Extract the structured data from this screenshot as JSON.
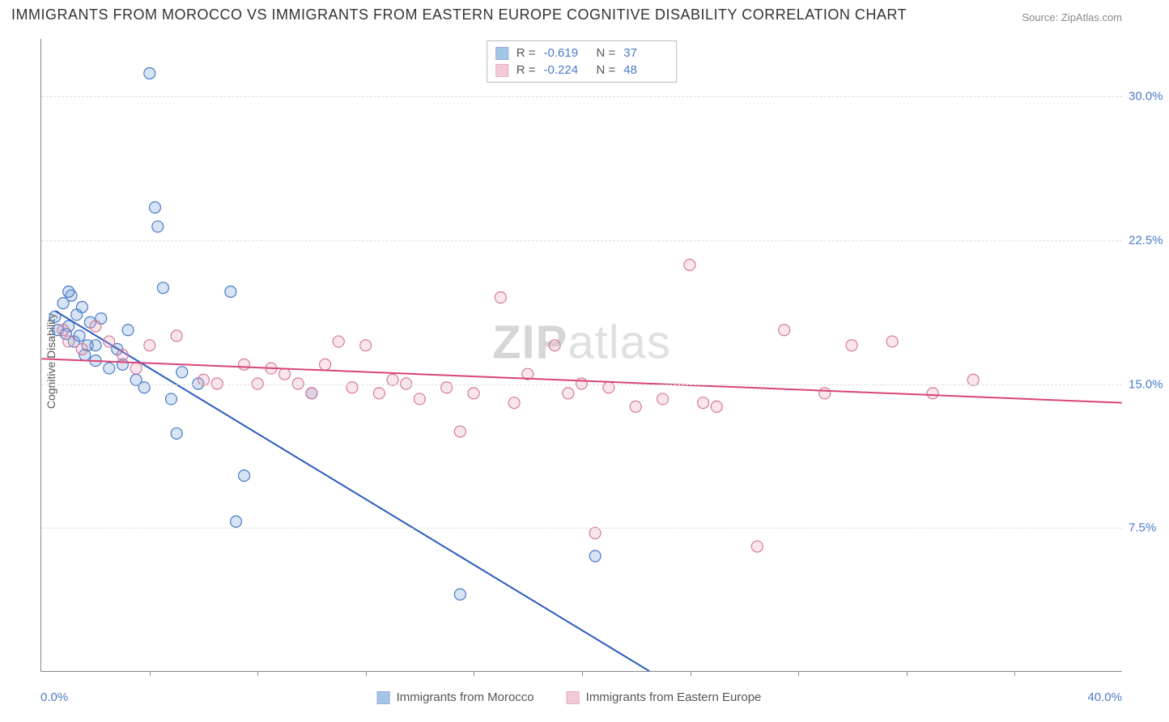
{
  "title": "IMMIGRANTS FROM MOROCCO VS IMMIGRANTS FROM EASTERN EUROPE COGNITIVE DISABILITY CORRELATION CHART",
  "source": "Source: ZipAtlas.com",
  "watermark": "ZIPatlas",
  "ylabel": "Cognitive Disability",
  "chart": {
    "type": "scatter",
    "background_color": "#ffffff",
    "grid_color": "#dddddd",
    "axis_color": "#888888",
    "xlim": [
      0,
      40
    ],
    "ylim": [
      0,
      33
    ],
    "xtick_positions": [
      4,
      8,
      12,
      16,
      20,
      24,
      28,
      32,
      36
    ],
    "ytick_positions": [
      7.5,
      15.0,
      22.5,
      30.0
    ],
    "ytick_labels": [
      "7.5%",
      "15.0%",
      "22.5%",
      "30.0%"
    ],
    "xaxis_min_label": "0.0%",
    "xaxis_max_label": "40.0%",
    "title_fontsize": 18,
    "label_fontsize": 14,
    "tick_fontsize": 15,
    "tick_label_color": "#4a7ac7",
    "marker_radius": 7,
    "marker_stroke_width": 1.2,
    "marker_fill_opacity": 0.28,
    "line_width": 2,
    "series": [
      {
        "name": "Immigrants from Morocco",
        "color": "#6b9fd8",
        "stroke": "#4a7ac7",
        "line_color": "#2b5cbf",
        "r_label": "R =",
        "r_value": "-0.619",
        "n_label": "N =",
        "n_value": "37",
        "trendline": {
          "x1": 0.5,
          "y1": 18.8,
          "x2": 22.5,
          "y2": 0
        },
        "points": [
          [
            0.5,
            18.5
          ],
          [
            0.6,
            17.8
          ],
          [
            0.8,
            19.2
          ],
          [
            1.0,
            18.0
          ],
          [
            1.1,
            19.6
          ],
          [
            1.2,
            17.2
          ],
          [
            1.3,
            18.6
          ],
          [
            1.4,
            17.5
          ],
          [
            1.5,
            19.0
          ],
          [
            1.6,
            16.5
          ],
          [
            1.8,
            18.2
          ],
          [
            2.0,
            17.0
          ],
          [
            2.0,
            16.2
          ],
          [
            2.2,
            18.4
          ],
          [
            2.5,
            15.8
          ],
          [
            3.0,
            16.0
          ],
          [
            3.2,
            17.8
          ],
          [
            3.5,
            15.2
          ],
          [
            4.0,
            31.2
          ],
          [
            4.2,
            24.2
          ],
          [
            4.3,
            23.2
          ],
          [
            4.5,
            20.0
          ],
          [
            4.8,
            14.2
          ],
          [
            5.0,
            12.4
          ],
          [
            5.2,
            15.6
          ],
          [
            5.8,
            15.0
          ],
          [
            7.0,
            19.8
          ],
          [
            7.2,
            7.8
          ],
          [
            7.5,
            10.2
          ],
          [
            10.0,
            14.5
          ],
          [
            15.5,
            4.0
          ],
          [
            20.5,
            6.0
          ],
          [
            1.0,
            19.8
          ],
          [
            1.7,
            17.0
          ],
          [
            2.8,
            16.8
          ],
          [
            3.8,
            14.8
          ],
          [
            0.9,
            17.6
          ]
        ]
      },
      {
        "name": "Immigrants from Eastern Europe",
        "color": "#eaa7bb",
        "stroke": "#d67a98",
        "line_color": "#d8447a",
        "r_label": "R =",
        "r_value": "-0.224",
        "n_label": "N =",
        "n_value": "48",
        "trendline": {
          "x1": 0,
          "y1": 16.3,
          "x2": 40,
          "y2": 14.0
        },
        "points": [
          [
            0.8,
            17.8
          ],
          [
            1.0,
            17.2
          ],
          [
            1.5,
            16.8
          ],
          [
            2.0,
            18.0
          ],
          [
            2.5,
            17.2
          ],
          [
            3.0,
            16.5
          ],
          [
            3.5,
            15.8
          ],
          [
            4.0,
            17.0
          ],
          [
            5.0,
            17.5
          ],
          [
            6.0,
            15.2
          ],
          [
            6.5,
            15.0
          ],
          [
            7.5,
            16.0
          ],
          [
            8.0,
            15.0
          ],
          [
            8.5,
            15.8
          ],
          [
            9.0,
            15.5
          ],
          [
            10.0,
            14.5
          ],
          [
            10.5,
            16.0
          ],
          [
            11.0,
            17.2
          ],
          [
            11.5,
            14.8
          ],
          [
            12.0,
            17.0
          ],
          [
            12.5,
            14.5
          ],
          [
            13.0,
            15.2
          ],
          [
            14.0,
            14.2
          ],
          [
            15.0,
            14.8
          ],
          [
            15.5,
            12.5
          ],
          [
            16.0,
            14.5
          ],
          [
            17.0,
            19.5
          ],
          [
            17.5,
            14.0
          ],
          [
            18.0,
            15.5
          ],
          [
            19.0,
            17.0
          ],
          [
            19.5,
            14.5
          ],
          [
            20.0,
            15.0
          ],
          [
            20.5,
            7.2
          ],
          [
            21.0,
            14.8
          ],
          [
            22.0,
            13.8
          ],
          [
            23.0,
            14.2
          ],
          [
            24.0,
            21.2
          ],
          [
            24.5,
            14.0
          ],
          [
            25.0,
            13.8
          ],
          [
            26.5,
            6.5
          ],
          [
            27.5,
            17.8
          ],
          [
            29.0,
            14.5
          ],
          [
            30.0,
            17.0
          ],
          [
            31.5,
            17.2
          ],
          [
            33.0,
            14.5
          ],
          [
            34.5,
            15.2
          ],
          [
            9.5,
            15.0
          ],
          [
            13.5,
            15.0
          ]
        ]
      }
    ]
  }
}
